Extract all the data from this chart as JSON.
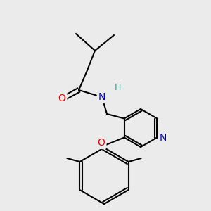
{
  "bg_color": "#ebebeb",
  "bond_color": "#000000",
  "bond_width": 1.5,
  "atom_colors": {
    "O": "#ff0000",
    "N": "#0000cc",
    "H_on_N": "#4a9090",
    "C": "#000000"
  },
  "font_size_atom": 10,
  "fig_size": [
    3.0,
    3.0
  ],
  "dpi": 100
}
